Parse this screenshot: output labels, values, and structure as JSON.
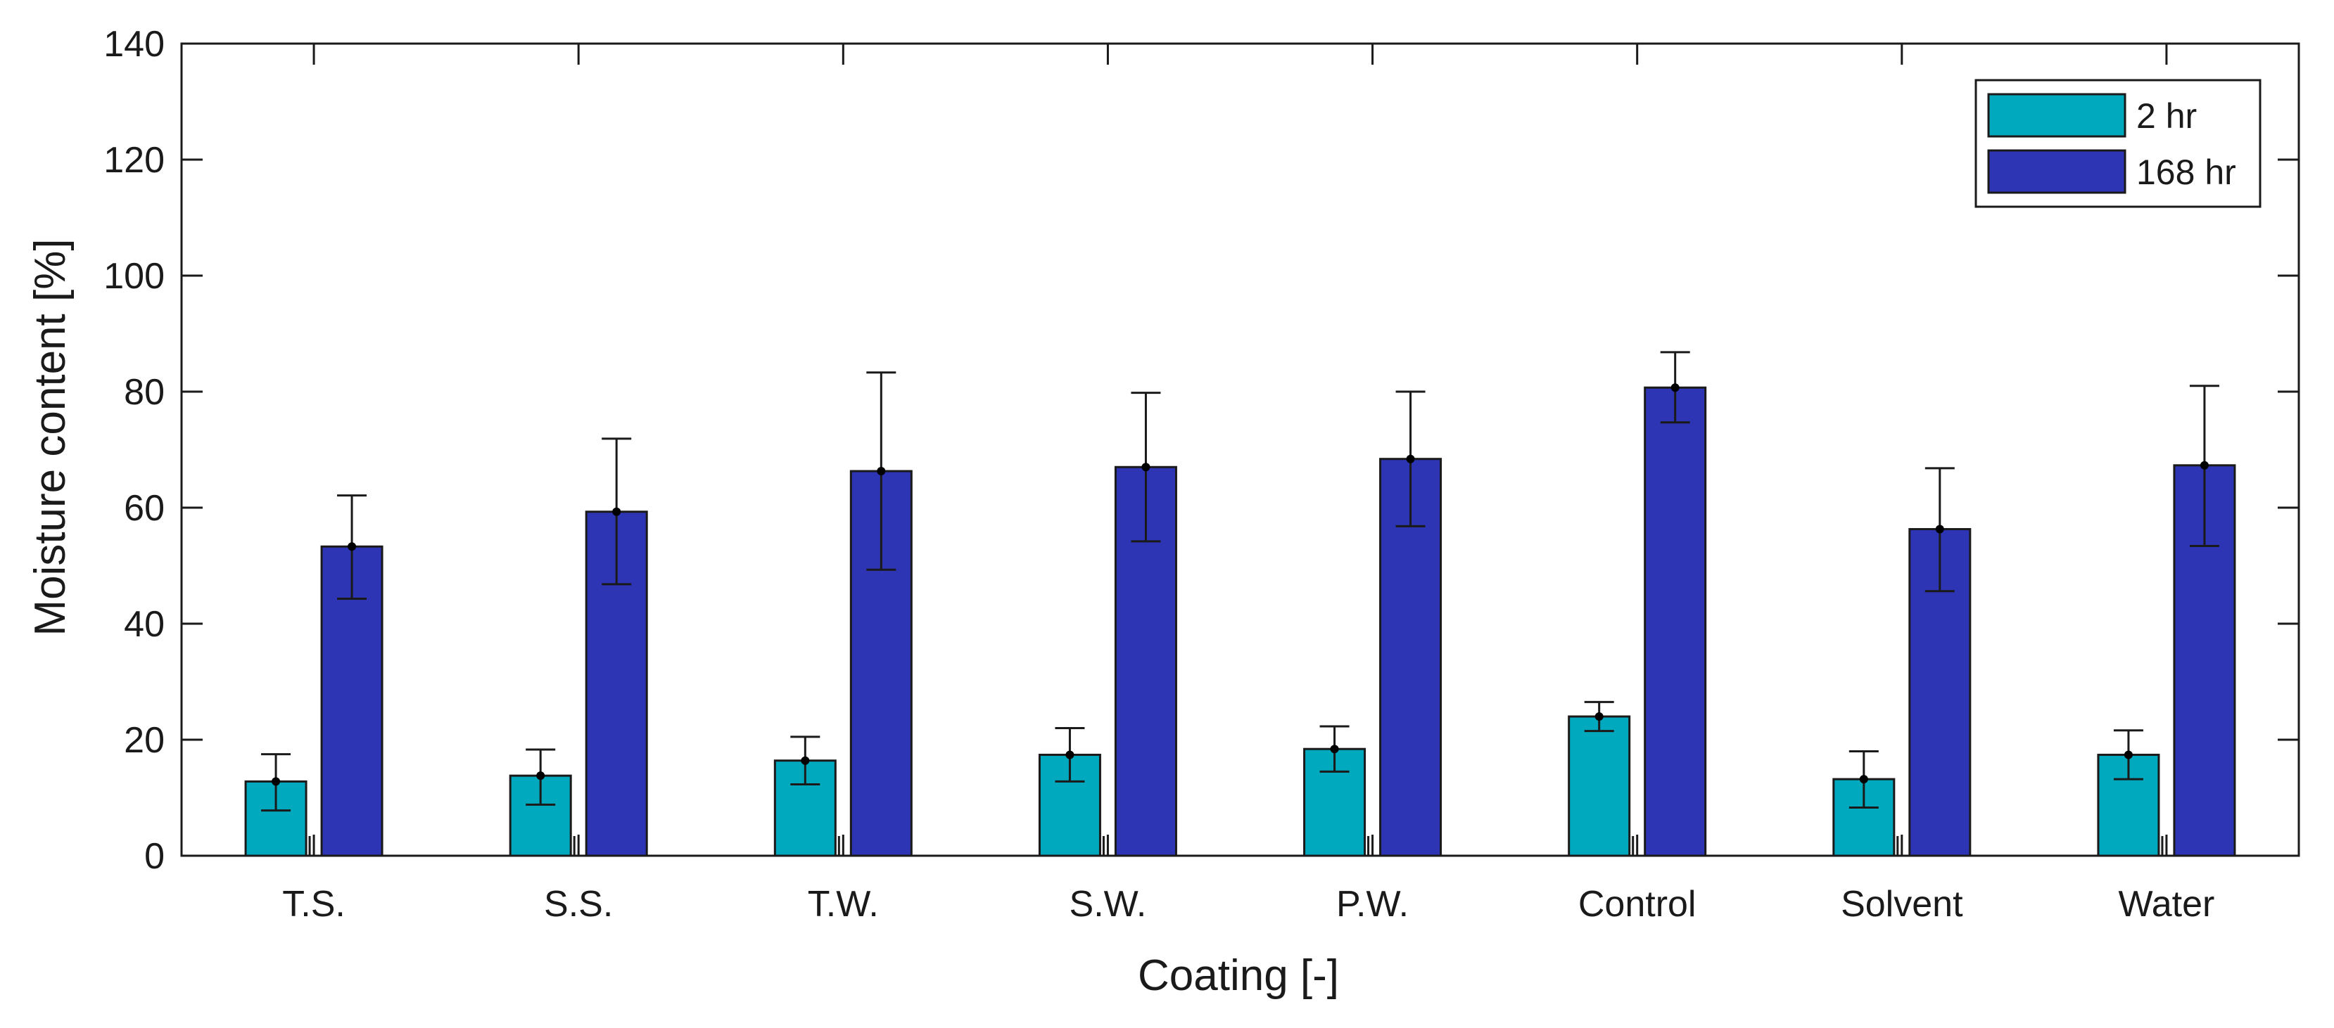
{
  "chart_data": {
    "type": "bar",
    "title": "",
    "xlabel": "Coating [-]",
    "ylabel": "Moisture content [%]",
    "ylim": [
      0,
      140
    ],
    "yticks": [
      0,
      20,
      40,
      60,
      80,
      100,
      120,
      140
    ],
    "grid": false,
    "legend_position": "top-right",
    "categories": [
      "T.S.",
      "S.S.",
      "T.W.",
      "S.W.",
      "P.W.",
      "Control",
      "Solvent",
      "Water"
    ],
    "series": [
      {
        "name": "2 hr",
        "color": "#00a9bd",
        "values": [
          12.8,
          13.8,
          16.4,
          17.4,
          18.4,
          24.0,
          13.2,
          17.4
        ],
        "error_low": [
          7.8,
          8.8,
          12.3,
          12.8,
          14.5,
          21.5,
          8.3,
          13.2
        ],
        "error_high": [
          17.5,
          18.3,
          20.5,
          22.0,
          22.3,
          26.5,
          18.0,
          21.6
        ]
      },
      {
        "name": "168 hr",
        "color": "#2e35b5",
        "values": [
          53.3,
          59.3,
          66.3,
          67.0,
          68.4,
          80.7,
          56.3,
          67.3
        ],
        "error_low": [
          44.3,
          46.8,
          49.3,
          54.2,
          56.8,
          74.7,
          45.6,
          53.4
        ],
        "error_high": [
          62.1,
          71.9,
          83.3,
          79.8,
          80.0,
          86.8,
          66.8,
          81.0
        ]
      }
    ]
  }
}
